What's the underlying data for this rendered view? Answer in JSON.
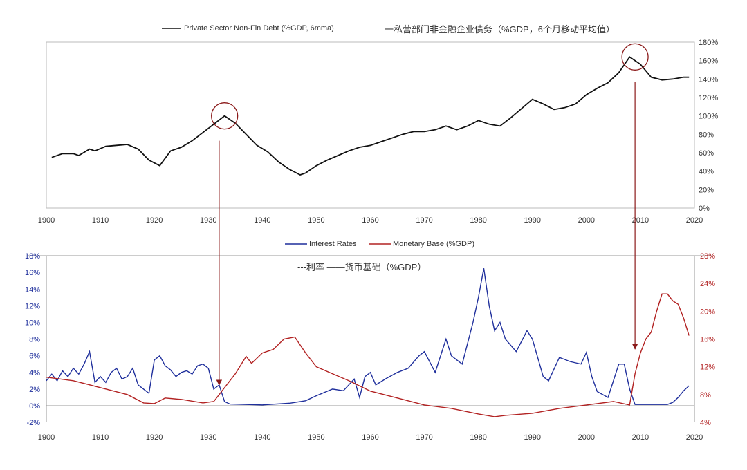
{
  "chart_data": [
    {
      "type": "line",
      "legend": "Private Sector Non-Fin Debt (%GDP, 6mma)",
      "title_cn": "一私营部门非金融企业债务（%GDP，6个月移动平均值）",
      "xlim": [
        1900,
        2020
      ],
      "xticks": [
        "1900",
        "1910",
        "1920",
        "1930",
        "1940",
        "1950",
        "1960",
        "1970",
        "1980",
        "1990",
        "2000",
        "2010",
        "2020"
      ],
      "ylim": [
        0,
        180
      ],
      "yticks": [
        "0%",
        "20%",
        "40%",
        "60%",
        "80%",
        "100%",
        "120%",
        "140%",
        "160%",
        "180%"
      ],
      "series": [
        {
          "name": "Private Sector Non-Fin Debt",
          "color": "#111111",
          "x": [
            1901,
            1903,
            1905,
            1906,
            1908,
            1909,
            1911,
            1913,
            1915,
            1917,
            1919,
            1921,
            1923,
            1925,
            1927,
            1929,
            1931,
            1933,
            1935,
            1937,
            1939,
            1941,
            1943,
            1945,
            1947,
            1948,
            1950,
            1952,
            1954,
            1956,
            1958,
            1960,
            1962,
            1964,
            1966,
            1968,
            1970,
            1972,
            1974,
            1976,
            1978,
            1980,
            1982,
            1984,
            1986,
            1988,
            1990,
            1992,
            1994,
            1996,
            1998,
            2000,
            2002,
            2004,
            2006,
            2008,
            2010,
            2012,
            2014,
            2016,
            2018,
            2019
          ],
          "y": [
            55,
            59,
            59,
            57,
            64,
            62,
            67,
            68,
            69,
            64,
            52,
            46,
            62,
            66,
            73,
            82,
            91,
            100,
            92,
            80,
            68,
            61,
            50,
            42,
            36,
            38,
            46,
            52,
            57,
            62,
            66,
            68,
            72,
            76,
            80,
            83,
            83,
            85,
            89,
            85,
            89,
            95,
            91,
            89,
            98,
            108,
            118,
            113,
            107,
            109,
            113,
            123,
            130,
            136,
            147,
            164,
            156,
            142,
            139,
            140,
            142,
            142
          ]
        }
      ],
      "annotations": [
        {
          "type": "circle",
          "x": 1933,
          "y": 100
        },
        {
          "type": "circle",
          "x": 2009,
          "y": 164
        }
      ]
    },
    {
      "type": "line",
      "legend_cn": "---利率 ——货币基础（%GDP）",
      "xlim": [
        1900,
        2020
      ],
      "xticks": [
        "1900",
        "1910",
        "1920",
        "1930",
        "1940",
        "1950",
        "1960",
        "1970",
        "1980",
        "1990",
        "2000",
        "2010",
        "2020"
      ],
      "ylim_left": [
        -2,
        18
      ],
      "yticks_left": [
        "-2%",
        "0%",
        "2%",
        "4%",
        "6%",
        "8%",
        "10%",
        "12%",
        "14%",
        "16%",
        "18%"
      ],
      "ylim_right": [
        4,
        28
      ],
      "yticks_right": [
        "4%",
        "8%",
        "12%",
        "16%",
        "20%",
        "24%",
        "28%"
      ],
      "series": [
        {
          "name": "Interest Rates",
          "color": "#1f2f9c",
          "axis": "left",
          "x": [
            1900,
            1901,
            1902,
            1903,
            1904,
            1905,
            1906,
            1907,
            1908,
            1909,
            1910,
            1911,
            1912,
            1913,
            1914,
            1915,
            1916,
            1917,
            1918,
            1919,
            1920,
            1921,
            1922,
            1923,
            1924,
            1925,
            1926,
            1927,
            1928,
            1929,
            1930,
            1931,
            1932,
            1933,
            1934,
            1940,
            1945,
            1948,
            1950,
            1953,
            1955,
            1957,
            1958,
            1959,
            1960,
            1961,
            1963,
            1965,
            1967,
            1969,
            1970,
            1972,
            1974,
            1975,
            1977,
            1979,
            1980,
            1981,
            1982,
            1983,
            1984,
            1985,
            1987,
            1989,
            1990,
            1992,
            1993,
            1995,
            1997,
            1999,
            2000,
            2001,
            2002,
            2004,
            2005,
            2006,
            2007,
            2008,
            2009,
            2015,
            2016,
            2017,
            2018,
            2019
          ],
          "y": [
            3,
            3.8,
            3,
            4.2,
            3.5,
            4.5,
            3.8,
            5,
            6.5,
            2.8,
            3.5,
            2.8,
            4,
            4.5,
            3.2,
            3.5,
            4.5,
            2.5,
            2,
            1.5,
            5.5,
            6,
            4.8,
            4.3,
            3.5,
            4,
            4.2,
            3.8,
            4.8,
            5,
            4.5,
            2,
            2.5,
            0.5,
            0.2,
            0.1,
            0.3,
            0.6,
            1.2,
            2,
            1.8,
            3.2,
            1,
            3.5,
            4,
            2.5,
            3.3,
            4,
            4.5,
            6,
            6.5,
            4,
            8,
            6,
            5,
            10,
            13,
            16.5,
            12,
            9,
            10,
            8,
            6.5,
            9,
            8,
            3.5,
            3,
            5.8,
            5.3,
            5,
            6.4,
            3.5,
            1.7,
            1,
            3,
            5,
            5,
            2,
            0.15,
            0.15,
            0.4,
            1,
            1.8,
            2.4
          ]
        },
        {
          "name": "Monetary Base (%GDP)",
          "color": "#b22222",
          "axis": "right",
          "x": [
            1900,
            1905,
            1910,
            1915,
            1918,
            1920,
            1922,
            1925,
            1929,
            1931,
            1933,
            1935,
            1937,
            1938,
            1940,
            1942,
            1944,
            1946,
            1948,
            1950,
            1953,
            1956,
            1960,
            1965,
            1970,
            1975,
            1980,
            1983,
            1985,
            1990,
            1995,
            2000,
            2005,
            2008,
            2009,
            2010,
            2011,
            2012,
            2013,
            2014,
            2015,
            2016,
            2017,
            2018,
            2019
          ],
          "y": [
            10.5,
            10,
            9,
            8,
            6.8,
            6.7,
            7.5,
            7.3,
            6.8,
            7,
            9,
            11,
            13.5,
            12.5,
            14,
            14.5,
            16,
            16.3,
            14,
            12,
            11,
            10,
            8.5,
            7.5,
            6.5,
            6,
            5.2,
            4.8,
            5,
            5.3,
            6,
            6.5,
            7,
            6.5,
            11,
            14,
            16,
            17,
            20,
            22.5,
            22.5,
            21.5,
            21,
            19,
            16.5
          ]
        }
      ],
      "annotations": [
        {
          "type": "arrow",
          "x": 1932
        },
        {
          "type": "arrow",
          "x": 2009
        }
      ]
    }
  ]
}
